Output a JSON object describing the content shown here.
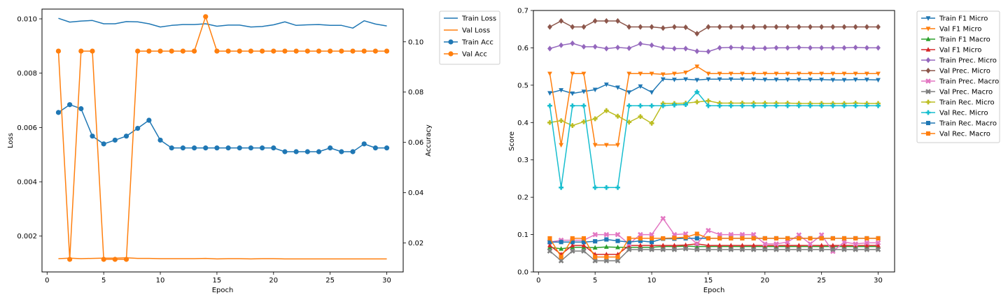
{
  "colors": {
    "blue": "#1f77b4",
    "orange": "#ff7f0e",
    "green": "#2ca02c",
    "red": "#d62728",
    "purple": "#9467bd",
    "brown": "#8c564b",
    "pink": "#e377c2",
    "gray": "#7f7f7f",
    "olive": "#bcbd22",
    "cyan": "#17becf"
  },
  "chart_data": [
    {
      "type": "line",
      "xlabel": "Epoch",
      "ylabel": "Loss",
      "y2label": "Accuracy",
      "x": [
        1,
        2,
        3,
        4,
        5,
        6,
        7,
        8,
        9,
        10,
        11,
        12,
        13,
        14,
        15,
        16,
        17,
        18,
        19,
        20,
        21,
        22,
        23,
        24,
        25,
        26,
        27,
        28,
        29,
        30
      ],
      "xlim": [
        -0.45,
        31.45
      ],
      "ylim": [
        0.00068,
        0.01036
      ],
      "y2lim": [
        0.0085,
        0.113
      ],
      "xticks": [
        "0",
        "5",
        "10",
        "15",
        "20",
        "25",
        "30"
      ],
      "yticks": [
        "0.002",
        "0.004",
        "0.006",
        "0.008",
        "0.010"
      ],
      "y2ticks": [
        "0.02",
        "0.04",
        "0.06",
        "0.08",
        "0.10"
      ],
      "legend_position": "outside-top-right",
      "series": [
        {
          "name": "Train Loss",
          "axis": "left",
          "color": "blue",
          "marker": "none",
          "values": [
            0.01002,
            0.00988,
            0.00992,
            0.00994,
            0.00982,
            0.00982,
            0.0099,
            0.00989,
            0.00982,
            0.0097,
            0.00976,
            0.00979,
            0.00979,
            0.00982,
            0.00973,
            0.00977,
            0.00977,
            0.0097,
            0.00972,
            0.00978,
            0.00989,
            0.00976,
            0.00978,
            0.00979,
            0.00976,
            0.00976,
            0.00966,
            0.00993,
            0.00981,
            0.00974
          ]
        },
        {
          "name": "Val Loss",
          "axis": "left",
          "color": "orange",
          "marker": "none",
          "values": [
            0.00117,
            0.00119,
            0.00117,
            0.00118,
            0.00119,
            0.00119,
            0.0012,
            0.00118,
            0.00118,
            0.00117,
            0.00117,
            0.00117,
            0.00117,
            0.00118,
            0.00116,
            0.00117,
            0.00117,
            0.00116,
            0.00117,
            0.00117,
            0.00116,
            0.00116,
            0.00116,
            0.00116,
            0.00116,
            0.00116,
            0.00116,
            0.00116,
            0.00116,
            0.00116
          ]
        },
        {
          "name": "Train Acc",
          "axis": "right",
          "color": "blue",
          "marker": "circle",
          "values": [
            0.0719,
            0.075,
            0.0734,
            0.0625,
            0.0594,
            0.0609,
            0.0625,
            0.0656,
            0.0688,
            0.0609,
            0.0578,
            0.0578,
            0.0578,
            0.0578,
            0.0578,
            0.0578,
            0.0578,
            0.0578,
            0.0578,
            0.0578,
            0.0563,
            0.0563,
            0.0563,
            0.0563,
            0.0578,
            0.0563,
            0.0563,
            0.0594,
            0.0578,
            0.0578
          ]
        },
        {
          "name": "Val Acc",
          "axis": "right",
          "color": "orange",
          "marker": "circle",
          "values": [
            0.0963,
            0.0135,
            0.0963,
            0.0963,
            0.0135,
            0.0135,
            0.0135,
            0.0963,
            0.0963,
            0.0963,
            0.0963,
            0.0963,
            0.0963,
            0.11,
            0.0963,
            0.0963,
            0.0963,
            0.0963,
            0.0963,
            0.0963,
            0.0963,
            0.0963,
            0.0963,
            0.0963,
            0.0963,
            0.0963,
            0.0963,
            0.0963,
            0.0963,
            0.0963
          ]
        }
      ]
    },
    {
      "type": "line",
      "xlabel": "Epoch",
      "ylabel": "Score",
      "x": [
        1,
        2,
        3,
        4,
        5,
        6,
        7,
        8,
        9,
        10,
        11,
        12,
        13,
        14,
        15,
        16,
        17,
        18,
        19,
        20,
        21,
        22,
        23,
        24,
        25,
        26,
        27,
        28,
        29,
        30
      ],
      "xlim": [
        -0.45,
        31.45
      ],
      "ylim": [
        0.0,
        0.7
      ],
      "xticks": [
        "0",
        "5",
        "10",
        "15",
        "20",
        "25",
        "30"
      ],
      "yticks": [
        "0.0",
        "0.1",
        "0.2",
        "0.3",
        "0.4",
        "0.5",
        "0.6",
        "0.7"
      ],
      "legend_position": "outside-top-right",
      "series": [
        {
          "name": "Train F1 Micro",
          "color": "blue",
          "marker": "tri-down",
          "values": [
            0.479,
            0.487,
            0.478,
            0.483,
            0.488,
            0.502,
            0.494,
            0.481,
            0.497,
            0.481,
            0.516,
            0.515,
            0.516,
            0.514,
            0.516,
            0.516,
            0.516,
            0.516,
            0.516,
            0.515,
            0.515,
            0.515,
            0.515,
            0.515,
            0.515,
            0.514,
            0.514,
            0.515,
            0.515,
            0.514
          ]
        },
        {
          "name": "Val F1 Micro",
          "color": "orange",
          "marker": "tri-down",
          "values": [
            0.531,
            0.34,
            0.531,
            0.531,
            0.34,
            0.34,
            0.34,
            0.531,
            0.531,
            0.531,
            0.529,
            0.531,
            0.534,
            0.55,
            0.531,
            0.531,
            0.531,
            0.531,
            0.531,
            0.531,
            0.531,
            0.531,
            0.531,
            0.531,
            0.531,
            0.531,
            0.531,
            0.531,
            0.531,
            0.531
          ]
        },
        {
          "name": "Train F1 Macro",
          "color": "green",
          "marker": "tri-up",
          "values": [
            0.066,
            0.062,
            0.066,
            0.066,
            0.065,
            0.067,
            0.066,
            0.066,
            0.066,
            0.066,
            0.068,
            0.068,
            0.069,
            0.068,
            0.068,
            0.068,
            0.068,
            0.068,
            0.068,
            0.068,
            0.068,
            0.068,
            0.068,
            0.068,
            0.068,
            0.068,
            0.068,
            0.068,
            0.068,
            0.068
          ]
        },
        {
          "name": "Val F1 Micro",
          "color": "red",
          "marker": "tri-up",
          "values": [
            0.071,
            0.047,
            0.071,
            0.071,
            0.047,
            0.047,
            0.047,
            0.071,
            0.071,
            0.071,
            0.071,
            0.071,
            0.072,
            0.075,
            0.071,
            0.071,
            0.071,
            0.071,
            0.071,
            0.071,
            0.071,
            0.071,
            0.071,
            0.071,
            0.071,
            0.071,
            0.071,
            0.071,
            0.071,
            0.071
          ]
        },
        {
          "name": "Train Prec. Micro",
          "color": "purple",
          "marker": "diamond",
          "values": [
            0.598,
            0.607,
            0.612,
            0.603,
            0.603,
            0.598,
            0.601,
            0.599,
            0.611,
            0.607,
            0.6,
            0.598,
            0.598,
            0.591,
            0.59,
            0.6,
            0.601,
            0.6,
            0.599,
            0.599,
            0.6,
            0.6,
            0.601,
            0.6,
            0.6,
            0.6,
            0.6,
            0.601,
            0.6,
            0.6
          ]
        },
        {
          "name": "Val Prec. Micro",
          "color": "brown",
          "marker": "diamond",
          "values": [
            0.656,
            0.672,
            0.656,
            0.656,
            0.672,
            0.672,
            0.672,
            0.656,
            0.656,
            0.656,
            0.653,
            0.656,
            0.655,
            0.638,
            0.656,
            0.656,
            0.656,
            0.656,
            0.656,
            0.656,
            0.656,
            0.656,
            0.656,
            0.656,
            0.656,
            0.656,
            0.656,
            0.656,
            0.656,
            0.656
          ]
        },
        {
          "name": "Train Prec. Macro",
          "color": "pink",
          "marker": "x",
          "values": [
            0.08,
            0.085,
            0.085,
            0.085,
            0.1,
            0.1,
            0.1,
            0.075,
            0.1,
            0.1,
            0.143,
            0.1,
            0.102,
            0.075,
            0.111,
            0.1,
            0.1,
            0.1,
            0.1,
            0.075,
            0.075,
            0.08,
            0.099,
            0.075,
            0.099,
            0.055,
            0.08,
            0.075,
            0.078,
            0.078
          ]
        },
        {
          "name": "Val Prec. Macro",
          "color": "gray",
          "marker": "x",
          "values": [
            0.056,
            0.03,
            0.056,
            0.056,
            0.03,
            0.03,
            0.03,
            0.06,
            0.06,
            0.06,
            0.06,
            0.06,
            0.062,
            0.06,
            0.06,
            0.06,
            0.06,
            0.06,
            0.06,
            0.06,
            0.06,
            0.06,
            0.06,
            0.06,
            0.06,
            0.06,
            0.06,
            0.06,
            0.06,
            0.06
          ]
        },
        {
          "name": "Train Rec. Micro",
          "color": "olive",
          "marker": "plus",
          "values": [
            0.4,
            0.405,
            0.392,
            0.402,
            0.41,
            0.432,
            0.417,
            0.401,
            0.416,
            0.398,
            0.451,
            0.451,
            0.452,
            0.455,
            0.458,
            0.452,
            0.452,
            0.452,
            0.452,
            0.452,
            0.452,
            0.452,
            0.451,
            0.451,
            0.451,
            0.451,
            0.451,
            0.452,
            0.451,
            0.451
          ]
        },
        {
          "name": "Val Rec. Micro",
          "color": "cyan",
          "marker": "plus",
          "values": [
            0.445,
            0.226,
            0.445,
            0.445,
            0.226,
            0.226,
            0.226,
            0.445,
            0.445,
            0.445,
            0.445,
            0.447,
            0.448,
            0.482,
            0.445,
            0.445,
            0.445,
            0.445,
            0.445,
            0.445,
            0.445,
            0.445,
            0.445,
            0.445,
            0.445,
            0.445,
            0.445,
            0.445,
            0.445,
            0.445
          ]
        },
        {
          "name": "Train Rec. Macro",
          "color": "blue",
          "marker": "square",
          "values": [
            0.08,
            0.08,
            0.08,
            0.08,
            0.082,
            0.087,
            0.083,
            0.08,
            0.083,
            0.08,
            0.089,
            0.089,
            0.09,
            0.09,
            0.09,
            0.09,
            0.09,
            0.09,
            0.09,
            0.09,
            0.09,
            0.09,
            0.09,
            0.09,
            0.09,
            0.09,
            0.09,
            0.09,
            0.09,
            0.09
          ]
        },
        {
          "name": "Val Rec. Macro",
          "color": "orange",
          "marker": "square",
          "values": [
            0.09,
            0.04,
            0.09,
            0.09,
            0.04,
            0.04,
            0.04,
            0.09,
            0.09,
            0.09,
            0.09,
            0.091,
            0.093,
            0.102,
            0.09,
            0.09,
            0.09,
            0.09,
            0.09,
            0.09,
            0.09,
            0.09,
            0.09,
            0.09,
            0.09,
            0.09,
            0.09,
            0.09,
            0.09,
            0.09
          ]
        }
      ]
    }
  ]
}
